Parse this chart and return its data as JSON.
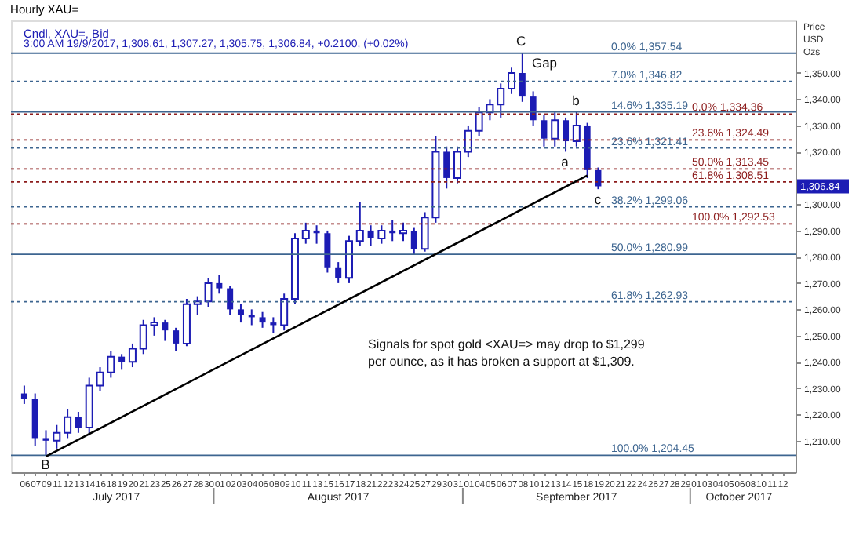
{
  "chart_data": {
    "type": "candlestick",
    "title": "Hourly XAU=",
    "subtitle": "Cndl, XAU=, Bid",
    "ylabel": "Price USD Ozs",
    "categories": [
      "06",
      "07",
      "09",
      "11",
      "12",
      "13",
      "14",
      "16",
      "18",
      "19",
      "20",
      "21",
      "23",
      "25",
      "26",
      "27",
      "28",
      "30",
      "01",
      "02",
      "03",
      "04",
      "06",
      "08",
      "09",
      "10",
      "11",
      "13",
      "15",
      "16",
      "17",
      "18",
      "21",
      "22",
      "23",
      "24",
      "25",
      "27",
      "29",
      "30",
      "31",
      "01",
      "04",
      "05",
      "06",
      "07",
      "08",
      "10",
      "12",
      "13",
      "14",
      "15",
      "18",
      "19",
      "20",
      "21",
      "22",
      "24",
      "26",
      "27",
      "28",
      "29",
      "01",
      "03",
      "04",
      "05",
      "06",
      "08",
      "10",
      "11",
      "12"
    ],
    "color": "#1c1cb4",
    "ohlc": [
      [
        1228,
        1231,
        1224,
        1226
      ],
      [
        1226,
        1228,
        1208,
        1211
      ],
      [
        1211,
        1214,
        1204.45,
        1210
      ],
      [
        1210,
        1216,
        1207,
        1213
      ],
      [
        1213,
        1222,
        1211,
        1219
      ],
      [
        1219,
        1221,
        1213,
        1215
      ],
      [
        1215,
        1234,
        1212,
        1231
      ],
      [
        1231,
        1238,
        1229,
        1236
      ],
      [
        1236,
        1244,
        1234,
        1242
      ],
      [
        1242,
        1243,
        1237,
        1240
      ],
      [
        1240,
        1247,
        1238,
        1245
      ],
      [
        1245,
        1256,
        1243,
        1254
      ],
      [
        1254,
        1257,
        1250,
        1255
      ],
      [
        1255,
        1256,
        1248,
        1252
      ],
      [
        1252,
        1253,
        1244,
        1247
      ],
      [
        1247,
        1264,
        1246,
        1262
      ],
      [
        1262,
        1265,
        1258,
        1263
      ],
      [
        1263,
        1272,
        1261,
        1270
      ],
      [
        1270,
        1273,
        1266,
        1268
      ],
      [
        1268,
        1269,
        1258,
        1260
      ],
      [
        1260,
        1262,
        1255,
        1258
      ],
      [
        1258,
        1260,
        1254,
        1257
      ],
      [
        1257,
        1259,
        1253,
        1255
      ],
      [
        1255,
        1257,
        1251,
        1254
      ],
      [
        1254,
        1266,
        1252,
        1264
      ],
      [
        1264,
        1289,
        1262,
        1287
      ],
      [
        1287,
        1293,
        1285,
        1290
      ],
      [
        1290,
        1292,
        1285,
        1289
      ],
      [
        1289,
        1290,
        1274,
        1276
      ],
      [
        1276,
        1278,
        1270,
        1272
      ],
      [
        1272,
        1288,
        1270,
        1286
      ],
      [
        1286,
        1301,
        1284,
        1290
      ],
      [
        1290,
        1292,
        1284,
        1287
      ],
      [
        1287,
        1292,
        1285,
        1290
      ],
      [
        1290,
        1294,
        1286,
        1289
      ],
      [
        1289,
        1293,
        1286,
        1290
      ],
      [
        1290,
        1291,
        1281,
        1283
      ],
      [
        1283,
        1297,
        1282,
        1295
      ],
      [
        1295,
        1326,
        1293,
        1320
      ],
      [
        1320,
        1322,
        1306,
        1310
      ],
      [
        1310,
        1322,
        1308,
        1320
      ],
      [
        1320,
        1330,
        1318,
        1328
      ],
      [
        1328,
        1337,
        1326,
        1335
      ],
      [
        1335,
        1340,
        1332,
        1338
      ],
      [
        1338,
        1346,
        1333,
        1344
      ],
      [
        1344,
        1352,
        1342,
        1350
      ],
      [
        1350,
        1357.54,
        1339,
        1341
      ],
      [
        1341,
        1343,
        1330,
        1332
      ],
      [
        1332,
        1334,
        1322,
        1325
      ],
      [
        1325,
        1335,
        1322,
        1332
      ],
      [
        1332,
        1333,
        1320,
        1324
      ],
      [
        1324,
        1335.19,
        1322,
        1330
      ],
      [
        1330,
        1331,
        1310,
        1313
      ],
      [
        1313,
        1314,
        1305.75,
        1306.84
      ],
      null,
      null,
      null,
      null,
      null,
      null,
      null,
      null,
      null,
      null,
      null,
      null,
      null,
      null,
      null,
      null,
      null
    ],
    "series": [
      {
        "type": "line",
        "color": "#000000",
        "values": [
          null,
          null,
          1204,
          null,
          null,
          null,
          null,
          null,
          null,
          null,
          null,
          null,
          null,
          null,
          null,
          null,
          null,
          null,
          null,
          null,
          null,
          null,
          null,
          null,
          null,
          null,
          null,
          null,
          null,
          null,
          null,
          null,
          null,
          null,
          null,
          null,
          null,
          null,
          null,
          null,
          null,
          null,
          null,
          null,
          null,
          null,
          null,
          null,
          null,
          null,
          null,
          null,
          1311,
          null,
          null,
          null,
          null,
          null,
          null,
          null,
          null,
          null,
          null,
          null,
          null,
          null,
          null,
          null,
          null,
          null,
          null
        ]
      }
    ],
    "ylim": [
      1198,
      1370
    ],
    "yticks": [
      {
        "value": 1210,
        "label": "1,210.00"
      },
      {
        "value": 1220,
        "label": "1,220.00"
      },
      {
        "value": 1230,
        "label": "1,230.00"
      },
      {
        "value": 1240,
        "label": "1,240.00"
      },
      {
        "value": 1250,
        "label": "1,250.00"
      },
      {
        "value": 1260,
        "label": "1,260.00"
      },
      {
        "value": 1270,
        "label": "1,270.00"
      },
      {
        "value": 1280,
        "label": "1,280.00"
      },
      {
        "value": 1290,
        "label": "1,290.00"
      },
      {
        "value": 1300,
        "label": "1,300.00"
      },
      {
        "value": 1320,
        "label": "1,320.00"
      },
      {
        "value": 1330,
        "label": "1,330.00"
      },
      {
        "value": 1340,
        "label": "1,340.00"
      },
      {
        "value": 1350,
        "label": "1,350.00"
      }
    ],
    "grid": false,
    "ref_lines": [
      {
        "axis": "y",
        "value": 1357.54,
        "label": "0.0% 1,357.54",
        "color": "#3d6590",
        "line_style": "solid"
      },
      {
        "axis": "y",
        "value": 1346.82,
        "label": "7.0% 1,346.82",
        "color": "#3d6590",
        "line_style": "dotted"
      },
      {
        "axis": "y",
        "value": 1335.19,
        "label": "14.6% 1,335.19",
        "color": "#3d6590",
        "line_style": "solid"
      },
      {
        "axis": "y",
        "value": 1321.41,
        "label": "23.6% 1,321.41",
        "color": "#3d6590",
        "line_style": "dotted"
      },
      {
        "axis": "y",
        "value": 1299.06,
        "label": "38.2% 1,299.06",
        "color": "#3d6590",
        "line_style": "dotted"
      },
      {
        "axis": "y",
        "value": 1280.99,
        "label": "50.0% 1,280.99",
        "color": "#3d6590",
        "line_style": "solid"
      },
      {
        "axis": "y",
        "value": 1262.93,
        "label": "61.8% 1,262.93",
        "color": "#3d6590",
        "line_style": "dotted"
      },
      {
        "axis": "y",
        "value": 1204.45,
        "label": "100.0% 1,204.45",
        "color": "#3d6590",
        "line_style": "solid"
      },
      {
        "axis": "y",
        "value": 1334.36,
        "label": "0.0% 1,334.36",
        "color": "#8c1c1c",
        "line_style": "dotted"
      },
      {
        "axis": "y",
        "value": 1324.49,
        "label": "23.6% 1,324.49",
        "color": "#8c1c1c",
        "line_style": "dotted"
      },
      {
        "axis": "y",
        "value": 1313.45,
        "label": "50.0% 1,313.45",
        "color": "#8c1c1c",
        "line_style": "dotted"
      },
      {
        "axis": "y",
        "value": 1308.51,
        "label": "61.8% 1,308.51",
        "color": "#8c1c1c",
        "line_style": "dotted"
      },
      {
        "axis": "y",
        "value": 1292.53,
        "label": "100.0% 1,292.53",
        "color": "#8c1c1c",
        "line_style": "dotted"
      }
    ],
    "annotations": [
      "3:00 AM 19/9/2017, 1,306.61, 1,307.27, 1,305.75, 1,306.84, +0.2100, (+0.02%)",
      "Signals for spot gold <XAU=> may drop to $1,299 per ounce, as it has broken a support at $1,309.",
      "July 2017",
      "August 2017",
      "September 2017",
      "October 2017",
      "C",
      "Gap",
      "b",
      "a",
      "c",
      "B",
      "1,306.84"
    ]
  }
}
